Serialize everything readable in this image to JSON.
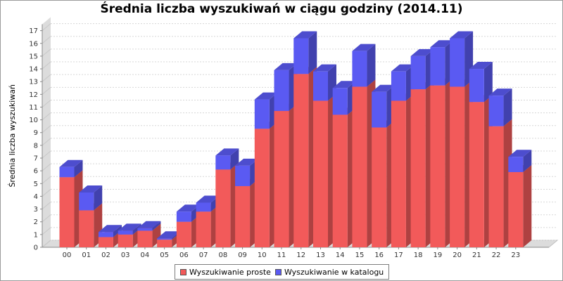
{
  "chart_data": {
    "type": "bar",
    "stacked": true,
    "style": "3d",
    "title": "Średnia liczba wyszukiwań w ciągu godziny (2014.11)",
    "xlabel": "",
    "ylabel": "Średnia liczba wyszukiwań",
    "ylim": [
      0,
      17.5
    ],
    "yticks": [
      0,
      1,
      2,
      3,
      4,
      5,
      6,
      7,
      8,
      9,
      10,
      11,
      12,
      13,
      14,
      15,
      16,
      17
    ],
    "grid": true,
    "legend_position": "bottom",
    "categories": [
      "00",
      "01",
      "02",
      "03",
      "04",
      "05",
      "06",
      "07",
      "08",
      "09",
      "10",
      "11",
      "12",
      "13",
      "14",
      "15",
      "16",
      "17",
      "18",
      "19",
      "20",
      "21",
      "22",
      "23"
    ],
    "series": [
      {
        "name": "Wyszukiwanie proste",
        "color": "#f25a5a",
        "values": [
          5.5,
          2.9,
          0.8,
          1.0,
          1.3,
          0.6,
          2.0,
          2.8,
          6.1,
          4.8,
          9.3,
          10.7,
          13.6,
          11.5,
          10.4,
          12.6,
          9.4,
          11.5,
          12.4,
          12.7,
          12.6,
          11.4,
          9.5,
          5.9
        ]
      },
      {
        "name": "Wyszukiwanie w katalogu",
        "color": "#5a5af2",
        "values": [
          0.8,
          1.4,
          0.4,
          0.3,
          0.2,
          0.1,
          0.8,
          0.7,
          1.1,
          1.6,
          2.3,
          3.2,
          2.8,
          2.3,
          2.1,
          2.8,
          2.8,
          2.3,
          2.6,
          3.0,
          3.8,
          2.6,
          2.4,
          1.2
        ]
      }
    ]
  }
}
